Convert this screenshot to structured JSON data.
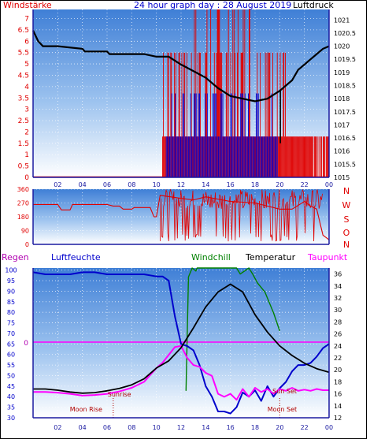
{
  "title": "24 hour graph day : 28 August 2019",
  "colors": {
    "red": "#e00000",
    "blue": "#0000cc",
    "black": "#000000",
    "green": "#008000",
    "magenta": "#ff00ff",
    "dkred": "#b00000",
    "frame": "#1a1aa0"
  },
  "x_ticks": [
    "02",
    "04",
    "06",
    "08",
    "10",
    "12",
    "14",
    "16",
    "18",
    "20",
    "22",
    "00"
  ],
  "chart_data": [
    {
      "type": "line",
      "name": "wind-pressure",
      "title": "24 hour graph day : 28 August 2019",
      "left_axis_label": "Windstärke",
      "right_axis_label": "Luftdruck",
      "left_ticks": [
        "0",
        "0.5",
        "1",
        "1.5",
        "2",
        "2.5",
        "3",
        "3.5",
        "4",
        "4.5",
        "5",
        "5.5",
        "6",
        "6.5",
        "7"
      ],
      "right_ticks": [
        "1015",
        "1015.5",
        "1016",
        "1016.5",
        "1017",
        "1017.5",
        "1018",
        "1018.5",
        "1019",
        "1019.5",
        "1020",
        "1020.5",
        "1021"
      ],
      "ylim_left": [
        0,
        7.4
      ],
      "ylim_right": [
        1015,
        1021.4
      ],
      "pressure": {
        "x": [
          0,
          0.4,
          0.8,
          2,
          4,
          4.2,
          6,
          6.2,
          9,
          10,
          11,
          12,
          14,
          15,
          16,
          17,
          18,
          19,
          20,
          21,
          21.5,
          22,
          22.5,
          23,
          23.5,
          24
        ],
        "y": [
          1020.6,
          1020.2,
          1020.0,
          1020.0,
          1019.9,
          1019.8,
          1019.8,
          1019.7,
          1019.7,
          1019.6,
          1019.6,
          1019.3,
          1018.8,
          1018.4,
          1018.1,
          1018.0,
          1017.9,
          1018.0,
          1018.3,
          1018.7,
          1019.1,
          1019.3,
          1019.5,
          1019.7,
          1019.9,
          1020.0
        ],
        "dip": {
          "x": 20.05,
          "y": 1016.3
        }
      },
      "wind_gust_bars": {
        "from": 10.5,
        "to": 24,
        "levels": [
          1.8,
          5.5,
          7.4
        ]
      },
      "wind_avg_bars": {
        "from": 10.8,
        "to": 19.8,
        "levels": [
          1.8,
          3.7
        ]
      }
    },
    {
      "type": "line",
      "name": "wind-direction",
      "left_ticks": [
        "0",
        "90",
        "180",
        "270",
        "360"
      ],
      "right_labels": [
        "N",
        "W",
        "S",
        "O",
        "N"
      ],
      "ylim": [
        0,
        360
      ],
      "direction": {
        "x": [
          0,
          2,
          2.3,
          3,
          3.2,
          6,
          6.5,
          7,
          7.3,
          8,
          8.2,
          9.5,
          9.8,
          10,
          10.3,
          12,
          13,
          14,
          16,
          18,
          20,
          21,
          22,
          22.5,
          23,
          23.5,
          24
        ],
        "y": [
          260,
          260,
          225,
          225,
          260,
          260,
          250,
          250,
          230,
          230,
          240,
          240,
          180,
          180,
          320,
          300,
          290,
          310,
          280,
          270,
          230,
          230,
          280,
          250,
          230,
          60,
          30
        ]
      }
    },
    {
      "type": "line",
      "name": "humidity-temperature",
      "left_label": "Regen",
      "left_label2": "Luftfeuchte",
      "legend": [
        "Windchill",
        "Temperatur",
        "Taupunkt"
      ],
      "left_ticks": [
        "30",
        "35",
        "40",
        "45",
        "50",
        "55",
        "60",
        "65",
        "70",
        "75",
        "80",
        "85",
        "90",
        "95",
        "100"
      ],
      "right_ticks": [
        "12",
        "14",
        "16",
        "18",
        "20",
        "22",
        "24",
        "26",
        "28",
        "30",
        "32",
        "34",
        "36"
      ],
      "rain_zero_label": "0",
      "ylim_left": [
        30,
        101
      ],
      "ylim_right": [
        12,
        37
      ],
      "annotations": [
        {
          "text": "Moon Rise",
          "x": 4.3,
          "y": 33
        },
        {
          "text": "Sunrise",
          "x": 7.0,
          "y": 40
        },
        {
          "text": "Sun Set",
          "x": 20.4,
          "y": 41.5
        },
        {
          "text": "Moon Set",
          "x": 20.2,
          "y": 33
        }
      ],
      "markers_x": [
        6.5,
        20.0
      ],
      "humidity": {
        "x": [
          0,
          1,
          2,
          3,
          4,
          5,
          6,
          7,
          8,
          9,
          10,
          10.5,
          11,
          11.5,
          12,
          12.5,
          13,
          13.5,
          14,
          14.5,
          15,
          15.5,
          16,
          16.5,
          17,
          17.5,
          18,
          18.5,
          19,
          19.5,
          20,
          20.5,
          21,
          21.5,
          22,
          22.5,
          23,
          23.5,
          24
        ],
        "y": [
          99,
          98,
          98,
          98,
          99,
          99,
          98,
          98,
          98,
          98,
          97,
          97,
          95,
          78,
          65,
          64,
          62,
          55,
          45,
          40,
          33,
          33,
          32,
          35,
          42,
          40,
          43,
          38,
          45,
          40,
          44,
          47,
          52,
          55,
          55,
          56,
          59,
          63,
          65
        ]
      },
      "temperature": {
        "x": [
          0,
          1,
          2,
          3,
          4,
          5,
          6,
          7,
          8,
          9,
          10,
          11,
          12,
          13,
          14,
          15,
          16,
          17,
          18,
          19,
          20,
          21,
          22,
          23,
          24
        ],
        "y": [
          16.8,
          16.8,
          16.6,
          16.3,
          16.1,
          16.2,
          16.5,
          16.9,
          17.5,
          18.5,
          20.3,
          21.5,
          23.7,
          27.0,
          30.5,
          33.0,
          34.3,
          33.0,
          29.2,
          26.3,
          24.0,
          22.4,
          21.1,
          20.2,
          19.6
        ]
      },
      "dewpoint": {
        "x": [
          0,
          1,
          2,
          3,
          4,
          5,
          6,
          7,
          8,
          9,
          10,
          10.5,
          11,
          11.5,
          12,
          12.5,
          13,
          13.5,
          14,
          14.5,
          15,
          15.5,
          16,
          16.5,
          17,
          17.5,
          18,
          18.5,
          19,
          19.5,
          20,
          20.5,
          21,
          21.5,
          22,
          22.5,
          23,
          23.5,
          24
        ],
        "y": [
          16.3,
          16.3,
          16.2,
          16.0,
          15.7,
          15.8,
          16.0,
          16.4,
          17.0,
          18.0,
          20.3,
          21.2,
          22.5,
          23.8,
          24.0,
          22.0,
          20.8,
          20.5,
          19.5,
          19.0,
          16.0,
          15.5,
          16.0,
          15.0,
          16.8,
          15.5,
          17.0,
          16.3,
          16.8,
          16.0,
          16.8,
          16.5,
          17.0,
          16.5,
          16.7,
          16.5,
          16.8,
          16.6,
          16.6
        ]
      },
      "windchill": {
        "x": [
          12.4,
          12.6,
          12.9,
          13.2,
          13.3,
          13.8,
          14.2,
          16,
          16.5,
          16.8,
          17.5,
          17.8,
          18.2,
          18.8,
          19.5,
          20
        ],
        "y": [
          16.5,
          35.5,
          37,
          36.5,
          37,
          37,
          37,
          37,
          37,
          36,
          37,
          36,
          34.5,
          33,
          29.5,
          26.5
        ]
      }
    }
  ]
}
